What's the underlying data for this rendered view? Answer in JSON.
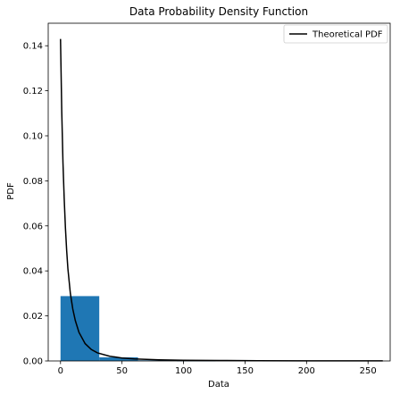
{
  "chart_data": {
    "type": "bar",
    "title": "Data Probability Density Function",
    "xlabel": "Data",
    "ylabel": "PDF",
    "xlim": [
      -10,
      268
    ],
    "ylim": [
      0,
      0.15
    ],
    "x_ticks": [
      0,
      50,
      100,
      150,
      200,
      250
    ],
    "y_ticks": [
      0.0,
      0.02,
      0.04,
      0.06,
      0.08,
      0.1,
      0.12,
      0.14
    ],
    "y_tick_labels": [
      "0.00",
      "0.02",
      "0.04",
      "0.06",
      "0.08",
      "0.10",
      "0.12",
      "0.14"
    ],
    "grid": false,
    "legend": {
      "placement": "top-right",
      "entries": [
        "Theoretical PDF"
      ]
    },
    "histogram": {
      "color": "#1f77b4",
      "bins": [
        {
          "x0": 0,
          "x1": 31.5,
          "density": 0.0288
        },
        {
          "x0": 31.5,
          "x1": 63,
          "density": 0.0016
        },
        {
          "x0": 63,
          "x1": 94.5,
          "density": 0.0003
        },
        {
          "x0": 94.5,
          "x1": 126,
          "density": 0.0001
        },
        {
          "x0": 126,
          "x1": 157.5,
          "density": 0.0004
        },
        {
          "x0": 157.5,
          "x1": 189,
          "density": 0.0
        },
        {
          "x0": 189,
          "x1": 220.5,
          "density": 0.0
        },
        {
          "x0": 220.5,
          "x1": 252,
          "density": 0.0001
        }
      ]
    },
    "series": [
      {
        "name": "Theoretical PDF",
        "color": "#000000",
        "x": [
          0,
          1,
          2,
          3,
          4,
          5,
          6,
          8,
          10,
          12,
          15,
          20,
          25,
          30,
          40,
          50,
          60,
          80,
          100,
          130,
          160,
          200,
          262
        ],
        "y": [
          0.143,
          0.111,
          0.088,
          0.072,
          0.059,
          0.049,
          0.041,
          0.03,
          0.023,
          0.018,
          0.0127,
          0.0077,
          0.0051,
          0.0036,
          0.0021,
          0.0013,
          0.0009,
          0.0005,
          0.0003,
          0.0002,
          0.0001,
          7e-05,
          3e-05
        ]
      }
    ]
  }
}
